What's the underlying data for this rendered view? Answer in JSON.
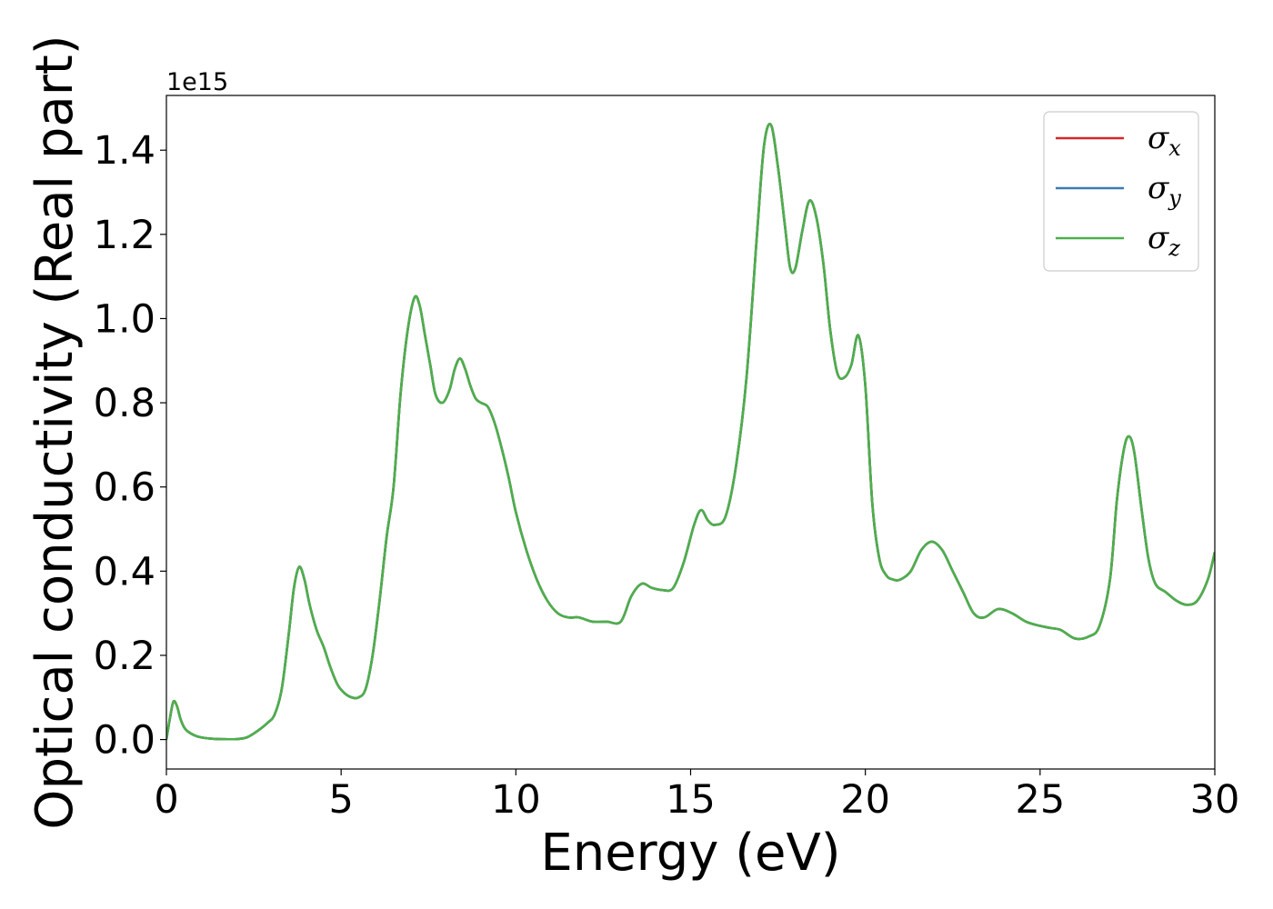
{
  "chart_data": {
    "type": "line",
    "xlabel": "Energy (eV)",
    "ylabel": "Optical conductivity (Real part)",
    "y_offset_text": "1e15",
    "xlim": [
      0,
      30
    ],
    "ylim": [
      -0.07,
      1.53
    ],
    "y_scale_note": "values in units of 1e15",
    "xticks": [
      0,
      5,
      10,
      15,
      20,
      25,
      30
    ],
    "xtick_labels": [
      "0",
      "5",
      "10",
      "15",
      "20",
      "25",
      "30"
    ],
    "yticks": [
      0.0,
      0.2,
      0.4,
      0.6,
      0.8,
      1.0,
      1.2,
      1.4
    ],
    "ytick_labels": [
      "0.0",
      "0.2",
      "0.4",
      "0.6",
      "0.8",
      "1.0",
      "1.2",
      "1.4"
    ],
    "grid": false,
    "legend_position": "top-right",
    "x": [
      0,
      0.1,
      0.2,
      0.3,
      0.4,
      0.5,
      0.6,
      0.8,
      1.0,
      1.3,
      1.6,
      2.0,
      2.3,
      2.6,
      2.9,
      3.1,
      3.3,
      3.5,
      3.65,
      3.8,
      3.95,
      4.1,
      4.3,
      4.5,
      4.7,
      4.9,
      5.1,
      5.3,
      5.5,
      5.7,
      5.9,
      6.1,
      6.3,
      6.5,
      6.7,
      6.9,
      7.1,
      7.25,
      7.4,
      7.55,
      7.7,
      7.9,
      8.1,
      8.25,
      8.4,
      8.55,
      8.7,
      8.85,
      9.0,
      9.2,
      9.4,
      9.6,
      9.8,
      10.0,
      10.3,
      10.6,
      10.9,
      11.2,
      11.5,
      11.8,
      12.2,
      12.6,
      13.0,
      13.3,
      13.6,
      13.9,
      14.2,
      14.5,
      14.8,
      15.1,
      15.3,
      15.5,
      15.7,
      16.0,
      16.3,
      16.6,
      16.9,
      17.1,
      17.3,
      17.5,
      17.7,
      17.85,
      18.0,
      18.2,
      18.4,
      18.6,
      18.8,
      19.0,
      19.2,
      19.4,
      19.6,
      19.8,
      20.0,
      20.2,
      20.4,
      20.6,
      20.8,
      21.0,
      21.3,
      21.6,
      21.9,
      22.2,
      22.5,
      22.8,
      23.1,
      23.4,
      23.8,
      24.2,
      24.6,
      25.0,
      25.3,
      25.6,
      26.0,
      26.4,
      26.7,
      27.0,
      27.2,
      27.4,
      27.55,
      27.7,
      27.9,
      28.1,
      28.3,
      28.6,
      28.9,
      29.2,
      29.5,
      29.8,
      30.0
    ],
    "series": [
      {
        "name": "σx",
        "color": "#d62728",
        "values": [
          0.0,
          0.05,
          0.09,
          0.08,
          0.05,
          0.03,
          0.02,
          0.01,
          0.005,
          0.002,
          0.001,
          0.001,
          0.005,
          0.02,
          0.04,
          0.06,
          0.12,
          0.25,
          0.36,
          0.41,
          0.38,
          0.32,
          0.26,
          0.22,
          0.17,
          0.13,
          0.11,
          0.1,
          0.1,
          0.12,
          0.2,
          0.33,
          0.48,
          0.6,
          0.82,
          0.97,
          1.05,
          1.03,
          0.96,
          0.89,
          0.82,
          0.8,
          0.83,
          0.88,
          0.905,
          0.88,
          0.84,
          0.81,
          0.8,
          0.79,
          0.75,
          0.69,
          0.62,
          0.54,
          0.45,
          0.38,
          0.33,
          0.3,
          0.29,
          0.29,
          0.28,
          0.28,
          0.28,
          0.34,
          0.37,
          0.36,
          0.355,
          0.36,
          0.42,
          0.51,
          0.545,
          0.52,
          0.51,
          0.53,
          0.65,
          0.86,
          1.2,
          1.41,
          1.46,
          1.36,
          1.22,
          1.12,
          1.12,
          1.21,
          1.28,
          1.24,
          1.13,
          0.97,
          0.87,
          0.86,
          0.89,
          0.96,
          0.84,
          0.56,
          0.43,
          0.39,
          0.38,
          0.38,
          0.4,
          0.45,
          0.47,
          0.45,
          0.4,
          0.35,
          0.3,
          0.29,
          0.31,
          0.3,
          0.28,
          0.27,
          0.265,
          0.26,
          0.24,
          0.245,
          0.27,
          0.38,
          0.57,
          0.69,
          0.72,
          0.68,
          0.55,
          0.43,
          0.37,
          0.35,
          0.33,
          0.32,
          0.33,
          0.38,
          0.445
        ]
      },
      {
        "name": "σy",
        "color": "#3b7bb3",
        "values": [
          0.0,
          0.05,
          0.09,
          0.08,
          0.05,
          0.03,
          0.02,
          0.01,
          0.005,
          0.002,
          0.001,
          0.001,
          0.005,
          0.02,
          0.04,
          0.06,
          0.12,
          0.25,
          0.36,
          0.41,
          0.38,
          0.32,
          0.26,
          0.22,
          0.17,
          0.13,
          0.11,
          0.1,
          0.1,
          0.12,
          0.2,
          0.33,
          0.48,
          0.6,
          0.82,
          0.97,
          1.05,
          1.03,
          0.96,
          0.89,
          0.82,
          0.8,
          0.83,
          0.88,
          0.905,
          0.88,
          0.84,
          0.81,
          0.8,
          0.79,
          0.75,
          0.69,
          0.62,
          0.54,
          0.45,
          0.38,
          0.33,
          0.3,
          0.29,
          0.29,
          0.28,
          0.28,
          0.28,
          0.34,
          0.37,
          0.36,
          0.355,
          0.36,
          0.42,
          0.51,
          0.545,
          0.52,
          0.51,
          0.53,
          0.65,
          0.86,
          1.2,
          1.41,
          1.46,
          1.36,
          1.22,
          1.12,
          1.12,
          1.21,
          1.28,
          1.24,
          1.13,
          0.97,
          0.87,
          0.86,
          0.89,
          0.96,
          0.84,
          0.56,
          0.43,
          0.39,
          0.38,
          0.38,
          0.4,
          0.45,
          0.47,
          0.45,
          0.4,
          0.35,
          0.3,
          0.29,
          0.31,
          0.3,
          0.28,
          0.27,
          0.265,
          0.26,
          0.24,
          0.245,
          0.27,
          0.38,
          0.57,
          0.69,
          0.72,
          0.68,
          0.55,
          0.43,
          0.37,
          0.35,
          0.33,
          0.32,
          0.33,
          0.38,
          0.445
        ]
      },
      {
        "name": "σz",
        "color": "#4daf4a",
        "values": [
          0.0,
          0.05,
          0.09,
          0.08,
          0.05,
          0.03,
          0.02,
          0.01,
          0.005,
          0.002,
          0.001,
          0.001,
          0.005,
          0.02,
          0.04,
          0.06,
          0.12,
          0.25,
          0.36,
          0.41,
          0.38,
          0.32,
          0.26,
          0.22,
          0.17,
          0.13,
          0.11,
          0.1,
          0.1,
          0.12,
          0.2,
          0.33,
          0.48,
          0.6,
          0.82,
          0.97,
          1.05,
          1.03,
          0.96,
          0.89,
          0.82,
          0.8,
          0.83,
          0.88,
          0.905,
          0.88,
          0.84,
          0.81,
          0.8,
          0.79,
          0.75,
          0.69,
          0.62,
          0.54,
          0.45,
          0.38,
          0.33,
          0.3,
          0.29,
          0.29,
          0.28,
          0.28,
          0.28,
          0.34,
          0.37,
          0.36,
          0.355,
          0.36,
          0.42,
          0.51,
          0.545,
          0.52,
          0.51,
          0.53,
          0.65,
          0.86,
          1.2,
          1.41,
          1.46,
          1.36,
          1.22,
          1.12,
          1.12,
          1.21,
          1.28,
          1.24,
          1.13,
          0.97,
          0.87,
          0.86,
          0.89,
          0.96,
          0.84,
          0.56,
          0.43,
          0.39,
          0.38,
          0.38,
          0.4,
          0.45,
          0.47,
          0.45,
          0.4,
          0.35,
          0.3,
          0.29,
          0.31,
          0.3,
          0.28,
          0.27,
          0.265,
          0.26,
          0.24,
          0.245,
          0.27,
          0.38,
          0.57,
          0.69,
          0.72,
          0.68,
          0.55,
          0.43,
          0.37,
          0.35,
          0.33,
          0.32,
          0.33,
          0.38,
          0.445
        ]
      }
    ],
    "legend": [
      {
        "symbol": "σ",
        "subscript": "x",
        "color": "#d62728"
      },
      {
        "symbol": "σ",
        "subscript": "y",
        "color": "#3b7bb3"
      },
      {
        "symbol": "σ",
        "subscript": "z",
        "color": "#4daf4a"
      }
    ]
  }
}
